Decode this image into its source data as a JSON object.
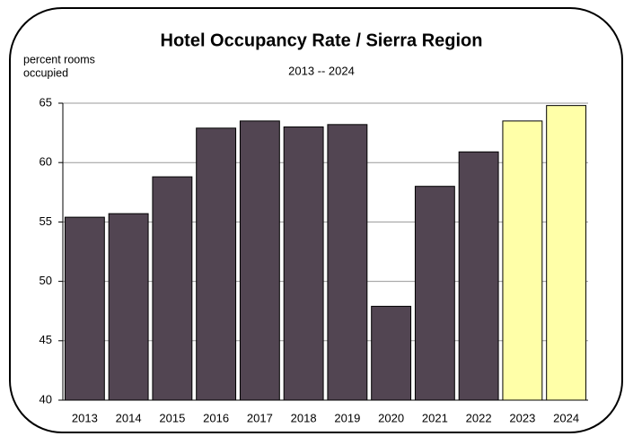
{
  "chart_data": {
    "type": "bar",
    "title": "Hotel Occupancy Rate / Sierra Region",
    "subtitle": "2013 -- 2024",
    "ylabel": [
      "percent rooms",
      "occupied"
    ],
    "categories": [
      "2013",
      "2014",
      "2015",
      "2016",
      "2017",
      "2018",
      "2019",
      "2020",
      "2021",
      "2022",
      "2023",
      "2024"
    ],
    "values": [
      55.4,
      55.7,
      58.8,
      62.9,
      63.5,
      63.0,
      63.2,
      47.9,
      58.0,
      60.9,
      63.5,
      64.8
    ],
    "colors": [
      "#524552",
      "#524552",
      "#524552",
      "#524552",
      "#524552",
      "#524552",
      "#524552",
      "#524552",
      "#524552",
      "#524552",
      "#ffffa8",
      "#ffffa8"
    ],
    "ylim": [
      40,
      65
    ],
    "yticks": [
      40,
      45,
      50,
      55,
      60,
      65
    ],
    "grid": true
  }
}
